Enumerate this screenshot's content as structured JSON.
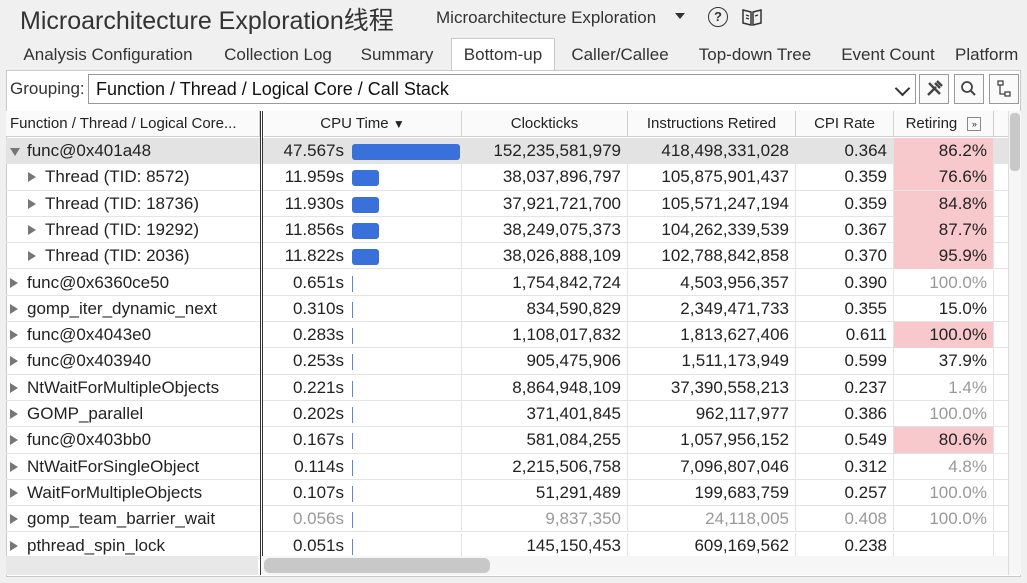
{
  "header": {
    "app_title": "Microarchitecture Exploration线程",
    "analysis_type": "Microarchitecture Exploration"
  },
  "tabs": [
    "Analysis Configuration",
    "Collection Log",
    "Summary",
    "Bottom-up",
    "Caller/Callee",
    "Top-down Tree",
    "Event Count",
    "Platform"
  ],
  "active_tab": "Bottom-up",
  "grouping": {
    "label": "Grouping:",
    "value": "Function / Thread / Logical Core / Call Stack"
  },
  "columns": {
    "name": "Function / Thread / Logical Core...",
    "cpu_time": "CPU Time",
    "cpu_time_sort_glyph": "▼",
    "clockticks": "Clockticks",
    "instructions": "Instructions Retired",
    "cpi": "CPI Rate",
    "retiring": "Retiring"
  },
  "colors": {
    "bar": "#3a70d9",
    "highlight": "#f7c9cc",
    "faded": "#999999"
  },
  "cpu_time_max": 47.567,
  "rows": [
    {
      "name": "func@0x401a48",
      "expanded": true,
      "cpu": "47.567s",
      "cpu_value": 47.567,
      "clk": "152,235,581,979",
      "instr": "418,498,331,028",
      "cpi": "0.364",
      "ret": "86.2%",
      "ret_hl": true,
      "selected": true
    },
    {
      "name": "Thread (TID: 8572)",
      "child": true,
      "cpu": "11.959s",
      "cpu_value": 11.959,
      "clk": "38,037,896,797",
      "instr": "105,875,901,437",
      "cpi": "0.359",
      "ret": "76.6%",
      "ret_hl": true
    },
    {
      "name": "Thread (TID: 18736)",
      "child": true,
      "cpu": "11.930s",
      "cpu_value": 11.93,
      "clk": "37,921,721,700",
      "instr": "105,571,247,194",
      "cpi": "0.359",
      "ret": "84.8%",
      "ret_hl": true
    },
    {
      "name": "Thread (TID: 19292)",
      "child": true,
      "cpu": "11.856s",
      "cpu_value": 11.856,
      "clk": "38,249,075,373",
      "instr": "104,262,339,539",
      "cpi": "0.367",
      "ret": "87.7%",
      "ret_hl": true
    },
    {
      "name": "Thread (TID: 2036)",
      "child": true,
      "cpu": "11.822s",
      "cpu_value": 11.822,
      "clk": "38,026,888,109",
      "instr": "102,788,842,858",
      "cpi": "0.370",
      "ret": "95.9%",
      "ret_hl": true
    },
    {
      "name": "func@0x6360ce50",
      "cpu": "0.651s",
      "cpu_value": 0.651,
      "clk": "1,754,842,724",
      "instr": "4,503,956,357",
      "cpi": "0.390",
      "ret": "100.0%",
      "ret_faded": true
    },
    {
      "name": "gomp_iter_dynamic_next",
      "cpu": "0.310s",
      "cpu_value": 0.31,
      "clk": "834,590,829",
      "instr": "2,349,471,733",
      "cpi": "0.355",
      "ret": "15.0%"
    },
    {
      "name": "func@0x4043e0",
      "cpu": "0.283s",
      "cpu_value": 0.283,
      "clk": "1,108,017,832",
      "instr": "1,813,627,406",
      "cpi": "0.611",
      "ret": "100.0%",
      "ret_hl": true
    },
    {
      "name": "func@0x403940",
      "cpu": "0.253s",
      "cpu_value": 0.253,
      "clk": "905,475,906",
      "instr": "1,511,173,949",
      "cpi": "0.599",
      "ret": "37.9%"
    },
    {
      "name": "NtWaitForMultipleObjects",
      "cpu": "0.221s",
      "cpu_value": 0.221,
      "clk": "8,864,948,109",
      "instr": "37,390,558,213",
      "cpi": "0.237",
      "ret": "1.4%",
      "ret_faded": true
    },
    {
      "name": "GOMP_parallel",
      "cpu": "0.202s",
      "cpu_value": 0.202,
      "clk": "371,401,845",
      "instr": "962,117,977",
      "cpi": "0.386",
      "ret": "100.0%",
      "ret_faded": true
    },
    {
      "name": "func@0x403bb0",
      "cpu": "0.167s",
      "cpu_value": 0.167,
      "clk": "581,084,255",
      "instr": "1,057,956,152",
      "cpi": "0.549",
      "ret": "80.6%",
      "ret_hl": true
    },
    {
      "name": "NtWaitForSingleObject",
      "cpu": "0.114s",
      "cpu_value": 0.114,
      "clk": "2,215,506,758",
      "instr": "7,096,807,046",
      "cpi": "0.312",
      "ret": "4.8%",
      "ret_faded": true
    },
    {
      "name": "WaitForMultipleObjects",
      "cpu": "0.107s",
      "cpu_value": 0.107,
      "clk": "51,291,489",
      "instr": "199,683,759",
      "cpi": "0.257",
      "ret": "100.0%",
      "ret_faded": true
    },
    {
      "name": "gomp_team_barrier_wait",
      "cpu": "0.056s",
      "cpu_value": 0.056,
      "clk": "9,837,350",
      "instr": "24,118,005",
      "cpi": "0.408",
      "ret": "100.0%",
      "faded": true
    },
    {
      "name": "pthread_spin_lock",
      "cpu": "0.051s",
      "cpu_value": 0.051,
      "clk": "145,150,453",
      "instr": "609,169,562",
      "cpi": "0.238",
      "ret": ""
    }
  ]
}
